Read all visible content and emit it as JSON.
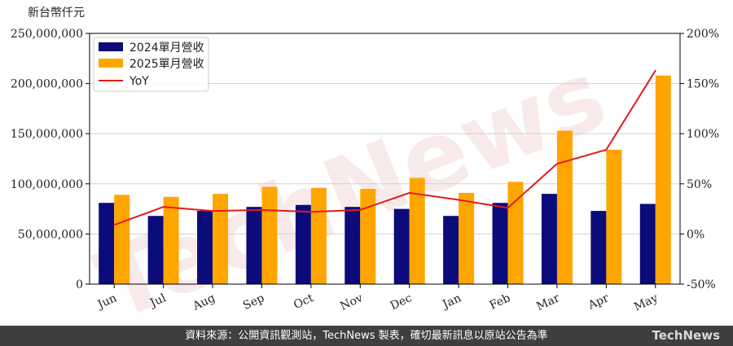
{
  "chart_data": {
    "type": "bar",
    "y_unit_label": "新台幣仟元",
    "categories": [
      "Jun",
      "Jul",
      "Aug",
      "Sep",
      "Oct",
      "Nov",
      "Dec",
      "Jan",
      "Feb",
      "Mar",
      "Apr",
      "May"
    ],
    "series": [
      {
        "name": "2024單月營收",
        "type": "bar",
        "axis": "left",
        "color": "#0b0b7a",
        "values": [
          81000000,
          68000000,
          73000000,
          77000000,
          79000000,
          77000000,
          75000000,
          68000000,
          81000000,
          90000000,
          73000000,
          80000000
        ]
      },
      {
        "name": "2025單月營收",
        "type": "bar",
        "axis": "left",
        "color": "#ffa500",
        "values": [
          89000000,
          87000000,
          90000000,
          97000000,
          96000000,
          95000000,
          106000000,
          91000000,
          102000000,
          153000000,
          134000000,
          208000000
        ]
      },
      {
        "name": "YoY",
        "type": "line",
        "axis": "right",
        "color": "#e31a1c",
        "values": [
          9,
          27,
          23,
          24,
          22,
          24,
          41,
          34,
          26,
          70,
          84,
          163
        ]
      }
    ],
    "ylim_left": [
      0,
      250000000
    ],
    "yticks_left": [
      "0",
      "50,000,000",
      "100,000,000",
      "150,000,000",
      "200,000,000",
      "250,000,000"
    ],
    "ylim_right": [
      -50,
      200
    ],
    "yticks_right": [
      "-50%",
      "0%",
      "50%",
      "100%",
      "150%",
      "200%"
    ],
    "grid": "horizontal",
    "legend_position": "top-left",
    "watermark": "TechNews"
  },
  "footer": {
    "source_text": "資料來源：公開資訊觀測站，TechNews 製表，確切最新訊息以原站公告為準",
    "logo": "TechNews"
  }
}
